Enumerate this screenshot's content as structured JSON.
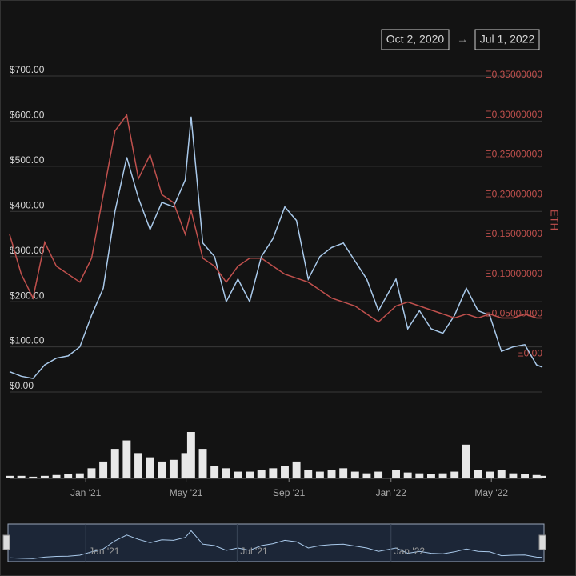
{
  "chart_data": {
    "type": "line",
    "range": {
      "start": "Oct 2, 2020",
      "arrow": "→",
      "end": "Jul 1, 2022"
    },
    "y2_label": "ETH",
    "x": [
      "2020-10-02",
      "2020-10-16",
      "2020-10-30",
      "2020-11-13",
      "2020-11-27",
      "2020-12-11",
      "2020-12-25",
      "2021-01-08",
      "2021-01-22",
      "2021-02-05",
      "2021-02-19",
      "2021-03-05",
      "2021-03-19",
      "2021-04-02",
      "2021-04-16",
      "2021-04-30",
      "2021-05-07",
      "2021-05-21",
      "2021-06-04",
      "2021-06-18",
      "2021-07-02",
      "2021-07-16",
      "2021-07-30",
      "2021-08-13",
      "2021-08-27",
      "2021-09-10",
      "2021-09-24",
      "2021-10-08",
      "2021-10-22",
      "2021-11-05",
      "2021-11-19",
      "2021-12-03",
      "2021-12-17",
      "2022-01-07",
      "2022-01-21",
      "2022-02-04",
      "2022-02-18",
      "2022-03-04",
      "2022-03-18",
      "2022-04-01",
      "2022-04-15",
      "2022-04-29",
      "2022-05-13",
      "2022-05-27",
      "2022-06-10",
      "2022-06-24",
      "2022-07-01"
    ],
    "series": [
      {
        "color": "#a9c9ea",
        "values": [
          45,
          35,
          30,
          60,
          75,
          80,
          100,
          170,
          230,
          400,
          520,
          430,
          360,
          420,
          410,
          470,
          610,
          330,
          300,
          200,
          250,
          200,
          300,
          340,
          410,
          380,
          250,
          300,
          320,
          330,
          290,
          250,
          180,
          250,
          140,
          180,
          140,
          130,
          170,
          230,
          180,
          170,
          90,
          100,
          105,
          60,
          55
        ]
      },
      {
        "color": "#c0504d",
        "axis": "y2",
        "values": [
          0.15,
          0.1,
          0.07,
          0.14,
          0.11,
          0.1,
          0.09,
          0.12,
          0.2,
          0.28,
          0.3,
          0.22,
          0.25,
          0.2,
          0.19,
          0.15,
          0.18,
          0.12,
          0.11,
          0.09,
          0.11,
          0.12,
          0.12,
          0.11,
          0.1,
          0.095,
          0.09,
          0.08,
          0.07,
          0.065,
          0.06,
          0.05,
          0.04,
          0.06,
          0.065,
          0.06,
          0.055,
          0.05,
          0.045,
          0.05,
          0.045,
          0.05,
          0.045,
          0.045,
          0.05,
          0.045,
          0.045
        ]
      }
    ],
    "volume": {
      "color": "#e8e8e8",
      "values": [
        3,
        3,
        2,
        3,
        4,
        5,
        6,
        12,
        20,
        35,
        45,
        30,
        25,
        20,
        22,
        30,
        55,
        35,
        15,
        12,
        8,
        8,
        10,
        12,
        15,
        20,
        10,
        8,
        10,
        12,
        8,
        6,
        8,
        10,
        7,
        6,
        5,
        6,
        8,
        40,
        10,
        8,
        10,
        6,
        5,
        4,
        3
      ]
    },
    "xlim": [
      "2020-10-02",
      "2022-07-01"
    ],
    "xticks": [
      {
        "value": "2021-01-01",
        "label": "Jan '21"
      },
      {
        "value": "2021-05-01",
        "label": "May '21"
      },
      {
        "value": "2021-09-01",
        "label": "Sep '21"
      },
      {
        "value": "2022-01-01",
        "label": "Jan '22"
      },
      {
        "value": "2022-05-01",
        "label": "May '22"
      }
    ],
    "ylim": [
      0,
      700
    ],
    "yticks": [
      {
        "value": 0,
        "label": "$0.00"
      },
      {
        "value": 100,
        "label": "$100.00"
      },
      {
        "value": 200,
        "label": "$200.00"
      },
      {
        "value": 300,
        "label": "$300.00"
      },
      {
        "value": 400,
        "label": "$400.00"
      },
      {
        "value": 500,
        "label": "$500.00"
      },
      {
        "value": 600,
        "label": "$600.00"
      },
      {
        "value": 700,
        "label": "$700.00"
      }
    ],
    "y2lim": [
      -0.048,
      0.349
    ],
    "y2ticks": [
      {
        "value": 0,
        "label": "Ξ0.00"
      },
      {
        "value": 0.05,
        "label": "Ξ0.05000000"
      },
      {
        "value": 0.1,
        "label": "Ξ0.10000000"
      },
      {
        "value": 0.15,
        "label": "Ξ0.15000000"
      },
      {
        "value": 0.2,
        "label": "Ξ0.20000000"
      },
      {
        "value": 0.25,
        "label": "Ξ0.25000000"
      },
      {
        "value": 0.3,
        "label": "Ξ0.30000000"
      },
      {
        "value": 0.35,
        "label": "Ξ0.35000000"
      }
    ],
    "grid": true,
    "navigator_xticks": [
      {
        "value": "2021-01-01",
        "label": "Jan '21"
      },
      {
        "value": "2021-07-01",
        "label": "Jul '21"
      },
      {
        "value": "2022-01-01",
        "label": "Jan '22"
      }
    ]
  }
}
